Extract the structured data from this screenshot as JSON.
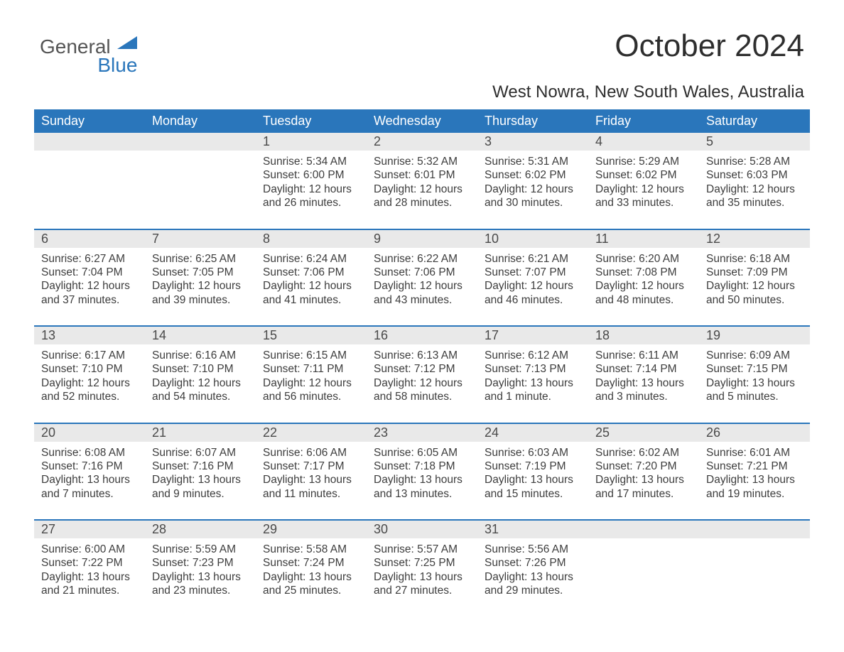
{
  "brand": {
    "general": "General",
    "blue": "Blue"
  },
  "title": "October 2024",
  "subtitle": "West Nowra, New South Wales, Australia",
  "colors": {
    "header_bg": "#2a76bb",
    "header_text": "#ffffff",
    "daynum_bg": "#e9e9e9",
    "text": "#3d3d3d",
    "rule": "#2a76bb",
    "page_bg": "#ffffff"
  },
  "typography": {
    "title_fontsize": 44,
    "subtitle_fontsize": 24,
    "dow_fontsize": 18,
    "body_fontsize": 15.5
  },
  "days_of_week": [
    "Sunday",
    "Monday",
    "Tuesday",
    "Wednesday",
    "Thursday",
    "Friday",
    "Saturday"
  ],
  "weeks": [
    [
      {
        "n": "",
        "sunrise": "",
        "sunset": "",
        "daylight": ""
      },
      {
        "n": "",
        "sunrise": "",
        "sunset": "",
        "daylight": ""
      },
      {
        "n": "1",
        "sunrise": "Sunrise: 5:34 AM",
        "sunset": "Sunset: 6:00 PM",
        "daylight": "Daylight: 12 hours and 26 minutes."
      },
      {
        "n": "2",
        "sunrise": "Sunrise: 5:32 AM",
        "sunset": "Sunset: 6:01 PM",
        "daylight": "Daylight: 12 hours and 28 minutes."
      },
      {
        "n": "3",
        "sunrise": "Sunrise: 5:31 AM",
        "sunset": "Sunset: 6:02 PM",
        "daylight": "Daylight: 12 hours and 30 minutes."
      },
      {
        "n": "4",
        "sunrise": "Sunrise: 5:29 AM",
        "sunset": "Sunset: 6:02 PM",
        "daylight": "Daylight: 12 hours and 33 minutes."
      },
      {
        "n": "5",
        "sunrise": "Sunrise: 5:28 AM",
        "sunset": "Sunset: 6:03 PM",
        "daylight": "Daylight: 12 hours and 35 minutes."
      }
    ],
    [
      {
        "n": "6",
        "sunrise": "Sunrise: 6:27 AM",
        "sunset": "Sunset: 7:04 PM",
        "daylight": "Daylight: 12 hours and 37 minutes."
      },
      {
        "n": "7",
        "sunrise": "Sunrise: 6:25 AM",
        "sunset": "Sunset: 7:05 PM",
        "daylight": "Daylight: 12 hours and 39 minutes."
      },
      {
        "n": "8",
        "sunrise": "Sunrise: 6:24 AM",
        "sunset": "Sunset: 7:06 PM",
        "daylight": "Daylight: 12 hours and 41 minutes."
      },
      {
        "n": "9",
        "sunrise": "Sunrise: 6:22 AM",
        "sunset": "Sunset: 7:06 PM",
        "daylight": "Daylight: 12 hours and 43 minutes."
      },
      {
        "n": "10",
        "sunrise": "Sunrise: 6:21 AM",
        "sunset": "Sunset: 7:07 PM",
        "daylight": "Daylight: 12 hours and 46 minutes."
      },
      {
        "n": "11",
        "sunrise": "Sunrise: 6:20 AM",
        "sunset": "Sunset: 7:08 PM",
        "daylight": "Daylight: 12 hours and 48 minutes."
      },
      {
        "n": "12",
        "sunrise": "Sunrise: 6:18 AM",
        "sunset": "Sunset: 7:09 PM",
        "daylight": "Daylight: 12 hours and 50 minutes."
      }
    ],
    [
      {
        "n": "13",
        "sunrise": "Sunrise: 6:17 AM",
        "sunset": "Sunset: 7:10 PM",
        "daylight": "Daylight: 12 hours and 52 minutes."
      },
      {
        "n": "14",
        "sunrise": "Sunrise: 6:16 AM",
        "sunset": "Sunset: 7:10 PM",
        "daylight": "Daylight: 12 hours and 54 minutes."
      },
      {
        "n": "15",
        "sunrise": "Sunrise: 6:15 AM",
        "sunset": "Sunset: 7:11 PM",
        "daylight": "Daylight: 12 hours and 56 minutes."
      },
      {
        "n": "16",
        "sunrise": "Sunrise: 6:13 AM",
        "sunset": "Sunset: 7:12 PM",
        "daylight": "Daylight: 12 hours and 58 minutes."
      },
      {
        "n": "17",
        "sunrise": "Sunrise: 6:12 AM",
        "sunset": "Sunset: 7:13 PM",
        "daylight": "Daylight: 13 hours and 1 minute."
      },
      {
        "n": "18",
        "sunrise": "Sunrise: 6:11 AM",
        "sunset": "Sunset: 7:14 PM",
        "daylight": "Daylight: 13 hours and 3 minutes."
      },
      {
        "n": "19",
        "sunrise": "Sunrise: 6:09 AM",
        "sunset": "Sunset: 7:15 PM",
        "daylight": "Daylight: 13 hours and 5 minutes."
      }
    ],
    [
      {
        "n": "20",
        "sunrise": "Sunrise: 6:08 AM",
        "sunset": "Sunset: 7:16 PM",
        "daylight": "Daylight: 13 hours and 7 minutes."
      },
      {
        "n": "21",
        "sunrise": "Sunrise: 6:07 AM",
        "sunset": "Sunset: 7:16 PM",
        "daylight": "Daylight: 13 hours and 9 minutes."
      },
      {
        "n": "22",
        "sunrise": "Sunrise: 6:06 AM",
        "sunset": "Sunset: 7:17 PM",
        "daylight": "Daylight: 13 hours and 11 minutes."
      },
      {
        "n": "23",
        "sunrise": "Sunrise: 6:05 AM",
        "sunset": "Sunset: 7:18 PM",
        "daylight": "Daylight: 13 hours and 13 minutes."
      },
      {
        "n": "24",
        "sunrise": "Sunrise: 6:03 AM",
        "sunset": "Sunset: 7:19 PM",
        "daylight": "Daylight: 13 hours and 15 minutes."
      },
      {
        "n": "25",
        "sunrise": "Sunrise: 6:02 AM",
        "sunset": "Sunset: 7:20 PM",
        "daylight": "Daylight: 13 hours and 17 minutes."
      },
      {
        "n": "26",
        "sunrise": "Sunrise: 6:01 AM",
        "sunset": "Sunset: 7:21 PM",
        "daylight": "Daylight: 13 hours and 19 minutes."
      }
    ],
    [
      {
        "n": "27",
        "sunrise": "Sunrise: 6:00 AM",
        "sunset": "Sunset: 7:22 PM",
        "daylight": "Daylight: 13 hours and 21 minutes."
      },
      {
        "n": "28",
        "sunrise": "Sunrise: 5:59 AM",
        "sunset": "Sunset: 7:23 PM",
        "daylight": "Daylight: 13 hours and 23 minutes."
      },
      {
        "n": "29",
        "sunrise": "Sunrise: 5:58 AM",
        "sunset": "Sunset: 7:24 PM",
        "daylight": "Daylight: 13 hours and 25 minutes."
      },
      {
        "n": "30",
        "sunrise": "Sunrise: 5:57 AM",
        "sunset": "Sunset: 7:25 PM",
        "daylight": "Daylight: 13 hours and 27 minutes."
      },
      {
        "n": "31",
        "sunrise": "Sunrise: 5:56 AM",
        "sunset": "Sunset: 7:26 PM",
        "daylight": "Daylight: 13 hours and 29 minutes."
      },
      {
        "n": "",
        "sunrise": "",
        "sunset": "",
        "daylight": ""
      },
      {
        "n": "",
        "sunrise": "",
        "sunset": "",
        "daylight": ""
      }
    ]
  ]
}
